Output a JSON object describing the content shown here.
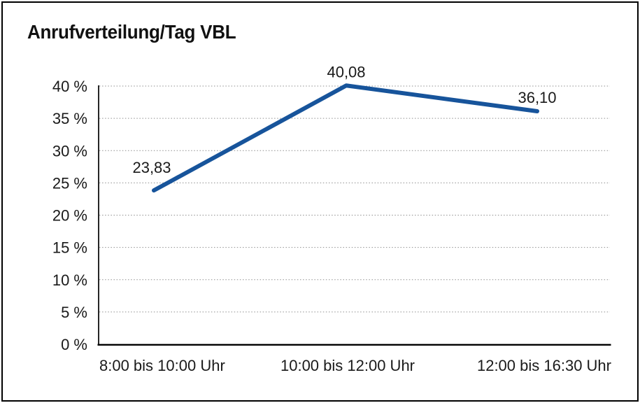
{
  "page": {
    "title": "Anrufverteilung/Tag VBL"
  },
  "chart_data": {
    "type": "line",
    "title": "Anrufverteilung/Tag VBL",
    "categories": [
      "8:00 bis 10:00 Uhr",
      "10:00 bis 12:00 Uhr",
      "12:00 bis 16:30 Uhr"
    ],
    "values": [
      23.83,
      40.08,
      36.1
    ],
    "data_labels": [
      "23,83",
      "40,08",
      "36,10"
    ],
    "decimal_separator": ",",
    "ylim": [
      0,
      40
    ],
    "ystep": 5,
    "yticks": [
      {
        "value": 0,
        "label": "0 %"
      },
      {
        "value": 5,
        "label": "5 %"
      },
      {
        "value": 10,
        "label": "10 %"
      },
      {
        "value": 15,
        "label": "15 %"
      },
      {
        "value": 20,
        "label": "20 %"
      },
      {
        "value": 25,
        "label": "25 %"
      },
      {
        "value": 30,
        "label": "30 %"
      },
      {
        "value": 35,
        "label": "35 %"
      },
      {
        "value": 40,
        "label": "40 %"
      }
    ],
    "grid": "horizontal-dotted",
    "legend": "none",
    "markers": "none",
    "colors": {
      "line": "#17549b",
      "text": "#1a1a1a",
      "grid": "#8f8f8f",
      "axis": "#000000",
      "background": "#ffffff",
      "border": "#000000"
    }
  }
}
